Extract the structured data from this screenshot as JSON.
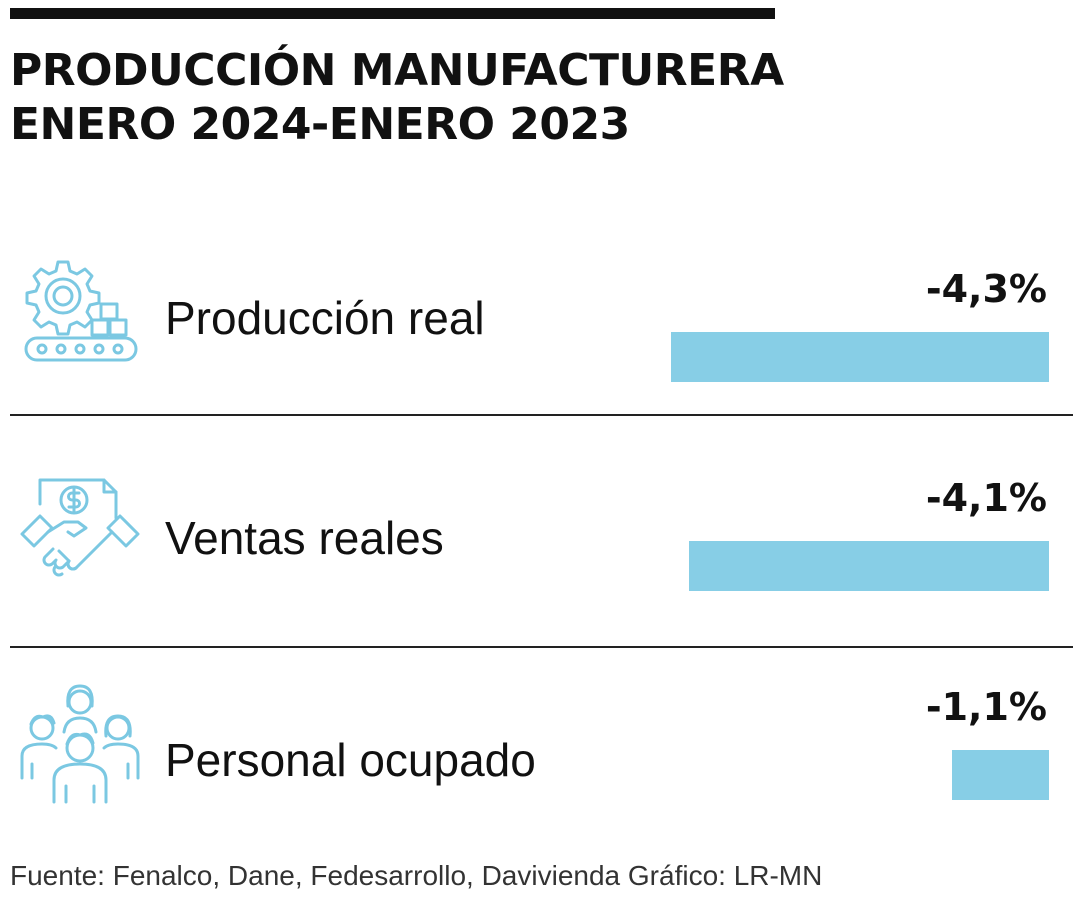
{
  "title": {
    "line1": "PRODUCCIÓN MANUFACTURERA",
    "line2": "ENERO 2024-ENERO 2023"
  },
  "colors": {
    "bar": "#87CEE6",
    "icon": "#7BC8E2",
    "text": "#111111"
  },
  "chart_data": {
    "type": "bar",
    "orientation": "horizontal",
    "categories": [
      "Producción real",
      "Ventas reales",
      "Personal ocupado"
    ],
    "values": [
      -4.3,
      -4.1,
      -1.1
    ],
    "value_labels": [
      "-4,3%",
      "-4,1%",
      "-1,1%"
    ],
    "icons": [
      "factory-gear-conveyor-icon",
      "handshake-money-icon",
      "team-people-icon"
    ],
    "grid": false,
    "legend": "none"
  },
  "footer": {
    "source": "Fuente: Fenalco, Dane, Fedesarrollo, Davivienda   Gráfico: LR-MN"
  }
}
